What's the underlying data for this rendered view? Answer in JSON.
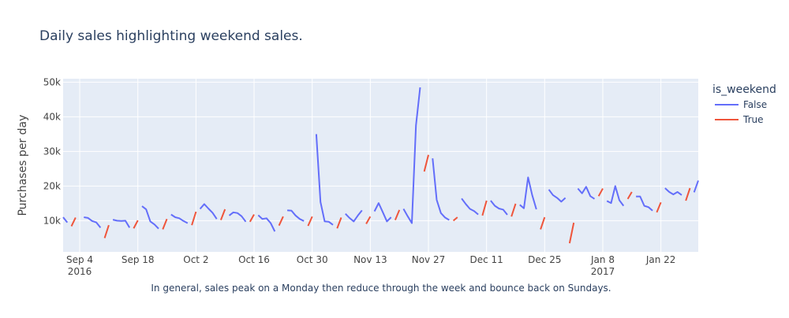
{
  "chart_data": {
    "type": "line",
    "title": "Daily sales highlighting weekend sales.",
    "xlabel": "",
    "ylabel": "Purchases per day",
    "annotation": "In general, sales peak on a Monday then reduce through the week and bounce back on Sundays.",
    "legend": {
      "title": "is_weekend",
      "placement": "top-right"
    },
    "x_range": [
      "2016-08-31",
      "2017-01-31"
    ],
    "ylim": [
      1000,
      51000
    ],
    "grid": true,
    "x_ticks": [
      {
        "date": "2016-09-04",
        "label": "Sep 4",
        "sublabel": "2016"
      },
      {
        "date": "2016-09-18",
        "label": "Sep 18",
        "sublabel": ""
      },
      {
        "date": "2016-10-02",
        "label": "Oct 2",
        "sublabel": ""
      },
      {
        "date": "2016-10-16",
        "label": "Oct 16",
        "sublabel": ""
      },
      {
        "date": "2016-10-30",
        "label": "Oct 30",
        "sublabel": ""
      },
      {
        "date": "2016-11-13",
        "label": "Nov 13",
        "sublabel": ""
      },
      {
        "date": "2016-11-27",
        "label": "Nov 27",
        "sublabel": ""
      },
      {
        "date": "2016-12-11",
        "label": "Dec 11",
        "sublabel": ""
      },
      {
        "date": "2016-12-25",
        "label": "Dec 25",
        "sublabel": ""
      },
      {
        "date": "2017-01-08",
        "label": "Jan 8",
        "sublabel": "2017"
      },
      {
        "date": "2017-01-22",
        "label": "Jan 22",
        "sublabel": ""
      }
    ],
    "y_ticks": [
      {
        "value": 10000,
        "label": "10k"
      },
      {
        "value": 20000,
        "label": "20k"
      },
      {
        "value": 30000,
        "label": "30k"
      },
      {
        "value": 40000,
        "label": "40k"
      },
      {
        "value": 50000,
        "label": "50k"
      }
    ],
    "series": [
      {
        "name": "False",
        "color": "#636efa",
        "segments": [
          [
            [
              "2016-08-31",
              11000
            ],
            [
              "2016-09-01",
              9500
            ]
          ],
          [
            [
              "2016-09-05",
              11000
            ],
            [
              "2016-09-06",
              10800
            ],
            [
              "2016-09-07",
              9900
            ],
            [
              "2016-09-08",
              9500
            ],
            [
              "2016-09-09",
              8000
            ]
          ],
          [
            [
              "2016-09-12",
              10300
            ],
            [
              "2016-09-13",
              10000
            ],
            [
              "2016-09-14",
              9900
            ],
            [
              "2016-09-15",
              10000
            ],
            [
              "2016-09-16",
              8000
            ]
          ],
          [
            [
              "2016-09-19",
              14200
            ],
            [
              "2016-09-20",
              13300
            ],
            [
              "2016-09-21",
              9800
            ],
            [
              "2016-09-22",
              8900
            ],
            [
              "2016-09-23",
              7700
            ]
          ],
          [
            [
              "2016-09-26",
              11800
            ],
            [
              "2016-09-27",
              11000
            ],
            [
              "2016-09-28",
              10700
            ],
            [
              "2016-09-29",
              9900
            ],
            [
              "2016-09-30",
              9300
            ]
          ],
          [
            [
              "2016-10-03",
              13400
            ],
            [
              "2016-10-04",
              14800
            ],
            [
              "2016-10-05",
              13500
            ],
            [
              "2016-10-06",
              12300
            ],
            [
              "2016-10-07",
              10500
            ]
          ],
          [
            [
              "2016-10-10",
              11500
            ],
            [
              "2016-10-11",
              12400
            ],
            [
              "2016-10-12",
              12200
            ],
            [
              "2016-10-13",
              11300
            ],
            [
              "2016-10-14",
              9700
            ]
          ],
          [
            [
              "2016-10-17",
              11600
            ],
            [
              "2016-10-18",
              10500
            ],
            [
              "2016-10-19",
              10700
            ],
            [
              "2016-10-20",
              9300
            ],
            [
              "2016-10-21",
              6900
            ]
          ],
          [
            [
              "2016-10-24",
              13000
            ],
            [
              "2016-10-25",
              12900
            ],
            [
              "2016-10-26",
              11500
            ],
            [
              "2016-10-27",
              10500
            ],
            [
              "2016-10-28",
              9900
            ]
          ],
          [
            [
              "2016-10-31",
              35000
            ],
            [
              "2016-11-01",
              15400
            ],
            [
              "2016-11-02",
              9800
            ],
            [
              "2016-11-03",
              9700
            ],
            [
              "2016-11-04",
              8800
            ]
          ],
          [
            [
              "2016-11-07",
              12000
            ],
            [
              "2016-11-08",
              10800
            ],
            [
              "2016-11-09",
              9800
            ],
            [
              "2016-11-10",
              11500
            ],
            [
              "2016-11-11",
              13000
            ]
          ],
          [
            [
              "2016-11-14",
              12700
            ],
            [
              "2016-11-15",
              15100
            ],
            [
              "2016-11-16",
              12500
            ],
            [
              "2016-11-17",
              9800
            ],
            [
              "2016-11-18",
              11000
            ]
          ],
          [
            [
              "2016-11-21",
              13400
            ],
            [
              "2016-11-22",
              11300
            ],
            [
              "2016-11-23",
              9300
            ],
            [
              "2016-11-24",
              37500
            ],
            [
              "2016-11-25",
              48500
            ]
          ],
          [
            [
              "2016-11-28",
              28000
            ],
            [
              "2016-11-29",
              16000
            ],
            [
              "2016-11-30",
              12200
            ],
            [
              "2016-12-01",
              10900
            ],
            [
              "2016-12-02",
              10200
            ]
          ],
          [
            [
              "2016-12-05",
              16400
            ],
            [
              "2016-12-06",
              14800
            ],
            [
              "2016-12-07",
              13400
            ],
            [
              "2016-12-08",
              12800
            ],
            [
              "2016-12-09",
              11800
            ]
          ],
          [
            [
              "2016-12-12",
              15800
            ],
            [
              "2016-12-13",
              14300
            ],
            [
              "2016-12-14",
              13500
            ],
            [
              "2016-12-15",
              13200
            ],
            [
              "2016-12-16",
              11700
            ]
          ],
          [
            [
              "2016-12-19",
              14600
            ],
            [
              "2016-12-20",
              13600
            ],
            [
              "2016-12-21",
              22500
            ],
            [
              "2016-12-22",
              17400
            ],
            [
              "2016-12-23",
              13300
            ]
          ],
          [
            [
              "2016-12-26",
              19000
            ],
            [
              "2016-12-27",
              17400
            ],
            [
              "2016-12-28",
              16600
            ],
            [
              "2016-12-29",
              15500
            ],
            [
              "2016-12-30",
              16600
            ]
          ],
          [
            [
              "2017-01-02",
              19300
            ],
            [
              "2017-01-03",
              17900
            ],
            [
              "2017-01-04",
              19800
            ],
            [
              "2017-01-05",
              17100
            ],
            [
              "2017-01-06",
              16300
            ]
          ],
          [
            [
              "2017-01-09",
              15700
            ],
            [
              "2017-01-10",
              15100
            ],
            [
              "2017-01-11",
              20000
            ],
            [
              "2017-01-12",
              15900
            ],
            [
              "2017-01-13",
              14300
            ]
          ],
          [
            [
              "2017-01-16",
              17000
            ],
            [
              "2017-01-17",
              17000
            ],
            [
              "2017-01-18",
              14300
            ],
            [
              "2017-01-19",
              13900
            ],
            [
              "2017-01-20",
              12900
            ]
          ],
          [
            [
              "2017-01-23",
              19400
            ],
            [
              "2017-01-24",
              18300
            ],
            [
              "2017-01-25",
              17600
            ],
            [
              "2017-01-26",
              18300
            ],
            [
              "2017-01-27",
              17400
            ]
          ],
          [
            [
              "2017-01-30",
              18200
            ],
            [
              "2017-01-31",
              21600
            ]
          ]
        ]
      },
      {
        "name": "True",
        "color": "#ef553b",
        "segments": [
          [
            [
              "2016-09-02",
              8400
            ],
            [
              "2016-09-03",
              10900
            ]
          ],
          [
            [
              "2016-09-10",
              5000
            ],
            [
              "2016-09-11",
              8700
            ]
          ],
          [
            [
              "2016-09-17",
              7800
            ],
            [
              "2016-09-18",
              10100
            ]
          ],
          [
            [
              "2016-09-24",
              7500
            ],
            [
              "2016-09-25",
              10500
            ]
          ],
          [
            [
              "2016-10-01",
              8700
            ],
            [
              "2016-10-02",
              12600
            ]
          ],
          [
            [
              "2016-10-08",
              10200
            ],
            [
              "2016-10-09",
              13300
            ]
          ],
          [
            [
              "2016-10-15",
              9700
            ],
            [
              "2016-10-16",
              11800
            ]
          ],
          [
            [
              "2016-10-22",
              8600
            ],
            [
              "2016-10-23",
              11200
            ]
          ],
          [
            [
              "2016-10-29",
              8500
            ],
            [
              "2016-10-30",
              11200
            ]
          ],
          [
            [
              "2016-11-05",
              7800
            ],
            [
              "2016-11-06",
              10900
            ]
          ],
          [
            [
              "2016-11-12",
              9100
            ],
            [
              "2016-11-13",
              11200
            ]
          ],
          [
            [
              "2016-11-19",
              10200
            ],
            [
              "2016-11-20",
              13100
            ]
          ],
          [
            [
              "2016-11-26",
              24200
            ],
            [
              "2016-11-27",
              29000
            ]
          ],
          [
            [
              "2016-12-03",
              10000
            ],
            [
              "2016-12-04",
              11000
            ]
          ],
          [
            [
              "2016-12-10",
              11500
            ],
            [
              "2016-12-11",
              15800
            ]
          ],
          [
            [
              "2016-12-17",
              11200
            ],
            [
              "2016-12-18",
              14900
            ]
          ],
          [
            [
              "2016-12-24",
              7500
            ],
            [
              "2016-12-25",
              11000
            ]
          ],
          [
            [
              "2016-12-31",
              3500
            ],
            [
              "2017-01-01",
              9400
            ]
          ],
          [
            [
              "2017-01-07",
              17100
            ],
            [
              "2017-01-08",
              19300
            ]
          ],
          [
            [
              "2017-01-14",
              16300
            ],
            [
              "2017-01-15",
              18300
            ]
          ],
          [
            [
              "2017-01-21",
              12400
            ],
            [
              "2017-01-22",
              15300
            ]
          ],
          [
            [
              "2017-01-28",
              15800
            ],
            [
              "2017-01-29",
              19400
            ]
          ]
        ]
      }
    ]
  }
}
